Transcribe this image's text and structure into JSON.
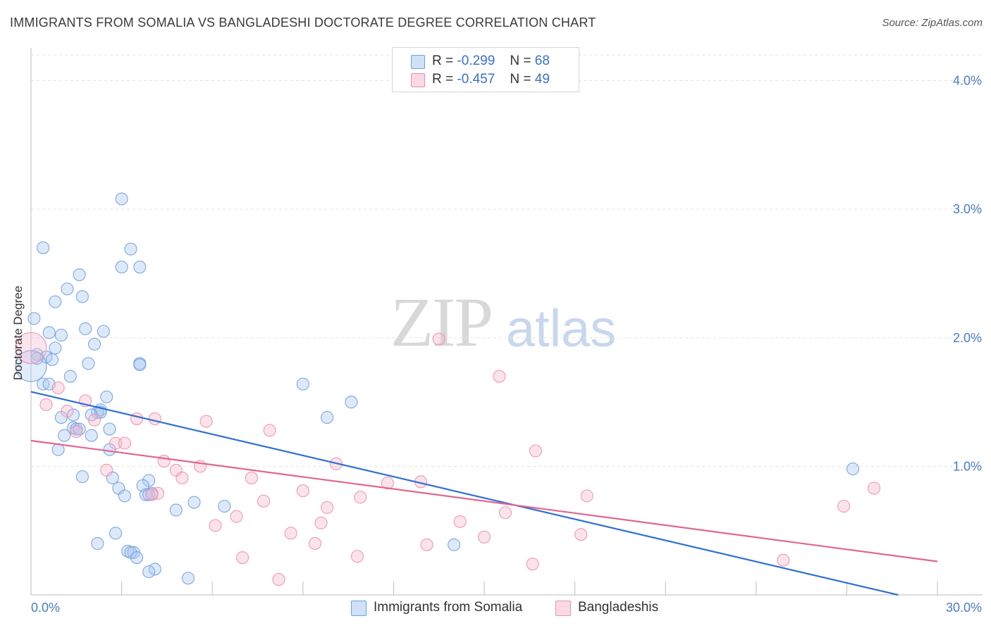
{
  "title": "IMMIGRANTS FROM SOMALIA VS BANGLADESHI DOCTORATE DEGREE CORRELATION CHART",
  "source": "Source: ZipAtlas.com",
  "watermark": {
    "zip": "ZIP",
    "atlas": "atlas"
  },
  "legend": {
    "rows": [
      {
        "r_label": "R =",
        "r_value": "-0.299",
        "n_label": "N =",
        "n_value": "68",
        "color": "#a9c8f0"
      },
      {
        "r_label": "R =",
        "r_value": "-0.457",
        "n_label": "N =",
        "n_value": "49",
        "color": "#f5b8cb"
      }
    ]
  },
  "bottom_legend": [
    {
      "label": "Immigrants from Somalia",
      "color": "#a9c8f0"
    },
    {
      "label": "Bangladeshis",
      "color": "#f5b8cb"
    }
  ],
  "chart_data": {
    "type": "scatter",
    "title": "IMMIGRANTS FROM SOMALIA VS BANGLADESHI DOCTORATE DEGREE CORRELATION CHART",
    "xlabel": "",
    "ylabel": "Doctorate Degree",
    "xlim": [
      0,
      30
    ],
    "ylim": [
      0,
      4.2
    ],
    "x_tick_labels": [
      "0.0%",
      "30.0%"
    ],
    "y_ticks": [
      1.0,
      2.0,
      3.0,
      4.0
    ],
    "y_tick_labels": [
      "1.0%",
      "2.0%",
      "3.0%",
      "4.0%"
    ],
    "grid": true,
    "legend_position": "top-center",
    "series": [
      {
        "name": "Immigrants from Somalia",
        "color": "#6f9fe0",
        "fill": "#a9c8f0",
        "trend": {
          "x": [
            0,
            28.7
          ],
          "y": [
            1.58,
            0.0
          ]
        },
        "points": [
          [
            3.0,
            3.08
          ],
          [
            0.4,
            2.7
          ],
          [
            3.3,
            2.69
          ],
          [
            3.0,
            2.55
          ],
          [
            3.6,
            2.55
          ],
          [
            1.6,
            2.49
          ],
          [
            1.2,
            2.38
          ],
          [
            1.7,
            2.32
          ],
          [
            0.8,
            2.28
          ],
          [
            0.1,
            2.15
          ],
          [
            1.8,
            2.07
          ],
          [
            2.4,
            2.05
          ],
          [
            0.6,
            2.04
          ],
          [
            1.0,
            2.02
          ],
          [
            2.1,
            1.95
          ],
          [
            0.8,
            1.92
          ],
          [
            0.2,
            1.87
          ],
          [
            0.5,
            1.85
          ],
          [
            0.2,
            1.84
          ],
          [
            0.7,
            1.83
          ],
          [
            1.9,
            1.8
          ],
          [
            3.6,
            1.8
          ],
          [
            3.6,
            1.79
          ],
          [
            1.3,
            1.7
          ],
          [
            0.4,
            1.64
          ],
          [
            0.6,
            1.64
          ],
          [
            9.0,
            1.64
          ],
          [
            2.5,
            1.54
          ],
          [
            10.6,
            1.5
          ],
          [
            2.3,
            1.44
          ],
          [
            2.2,
            1.42
          ],
          [
            2.3,
            1.42
          ],
          [
            2.0,
            1.4
          ],
          [
            1.4,
            1.4
          ],
          [
            1.0,
            1.38
          ],
          [
            9.8,
            1.38
          ],
          [
            1.4,
            1.3
          ],
          [
            1.5,
            1.29
          ],
          [
            2.6,
            1.29
          ],
          [
            1.1,
            1.24
          ],
          [
            2.0,
            1.24
          ],
          [
            0.9,
            1.13
          ],
          [
            2.6,
            1.13
          ],
          [
            27.2,
            0.98
          ],
          [
            1.7,
            0.92
          ],
          [
            2.7,
            0.91
          ],
          [
            3.9,
            0.89
          ],
          [
            3.7,
            0.85
          ],
          [
            2.9,
            0.83
          ],
          [
            3.1,
            0.77
          ],
          [
            4.0,
            0.79
          ],
          [
            3.8,
            0.78
          ],
          [
            3.9,
            0.78
          ],
          [
            5.4,
            0.72
          ],
          [
            6.4,
            0.69
          ],
          [
            4.8,
            0.66
          ],
          [
            2.8,
            0.48
          ],
          [
            2.2,
            0.4
          ],
          [
            14.0,
            0.39
          ],
          [
            3.2,
            0.34
          ],
          [
            3.4,
            0.33
          ],
          [
            3.3,
            0.33
          ],
          [
            3.5,
            0.29
          ],
          [
            4.1,
            0.2
          ],
          [
            3.9,
            0.18
          ],
          [
            5.2,
            0.13
          ],
          [
            0.0,
            1.78
          ],
          [
            1.6,
            1.29
          ]
        ]
      },
      {
        "name": "Bangladeshis",
        "color": "#ee8fae",
        "fill": "#f5b8cb",
        "trend": {
          "x": [
            0,
            30
          ],
          "y": [
            1.2,
            0.26
          ]
        },
        "points": [
          [
            0.0,
            1.92
          ],
          [
            13.5,
            1.99
          ],
          [
            15.5,
            1.7
          ],
          [
            0.9,
            1.61
          ],
          [
            1.8,
            1.51
          ],
          [
            0.5,
            1.48
          ],
          [
            1.2,
            1.43
          ],
          [
            3.5,
            1.37
          ],
          [
            4.1,
            1.37
          ],
          [
            2.1,
            1.36
          ],
          [
            5.8,
            1.35
          ],
          [
            7.9,
            1.28
          ],
          [
            1.5,
            1.27
          ],
          [
            2.8,
            1.18
          ],
          [
            3.1,
            1.18
          ],
          [
            16.7,
            1.12
          ],
          [
            4.4,
            1.04
          ],
          [
            10.1,
            1.02
          ],
          [
            5.6,
            1.0
          ],
          [
            2.5,
            0.97
          ],
          [
            4.8,
            0.97
          ],
          [
            5.0,
            0.91
          ],
          [
            7.3,
            0.91
          ],
          [
            12.9,
            0.88
          ],
          [
            11.8,
            0.87
          ],
          [
            27.9,
            0.83
          ],
          [
            9.0,
            0.81
          ],
          [
            4.2,
            0.79
          ],
          [
            4.0,
            0.78
          ],
          [
            18.4,
            0.77
          ],
          [
            10.9,
            0.76
          ],
          [
            7.7,
            0.73
          ],
          [
            14.2,
            0.57
          ],
          [
            9.8,
            0.68
          ],
          [
            15.7,
            0.64
          ],
          [
            6.8,
            0.61
          ],
          [
            9.6,
            0.56
          ],
          [
            6.1,
            0.54
          ],
          [
            26.9,
            0.69
          ],
          [
            8.6,
            0.48
          ],
          [
            15.0,
            0.45
          ],
          [
            18.2,
            0.47
          ],
          [
            9.4,
            0.4
          ],
          [
            13.1,
            0.39
          ],
          [
            10.8,
            0.3
          ],
          [
            7.0,
            0.29
          ],
          [
            24.9,
            0.27
          ],
          [
            16.6,
            0.24
          ],
          [
            8.2,
            0.12
          ]
        ]
      }
    ]
  }
}
